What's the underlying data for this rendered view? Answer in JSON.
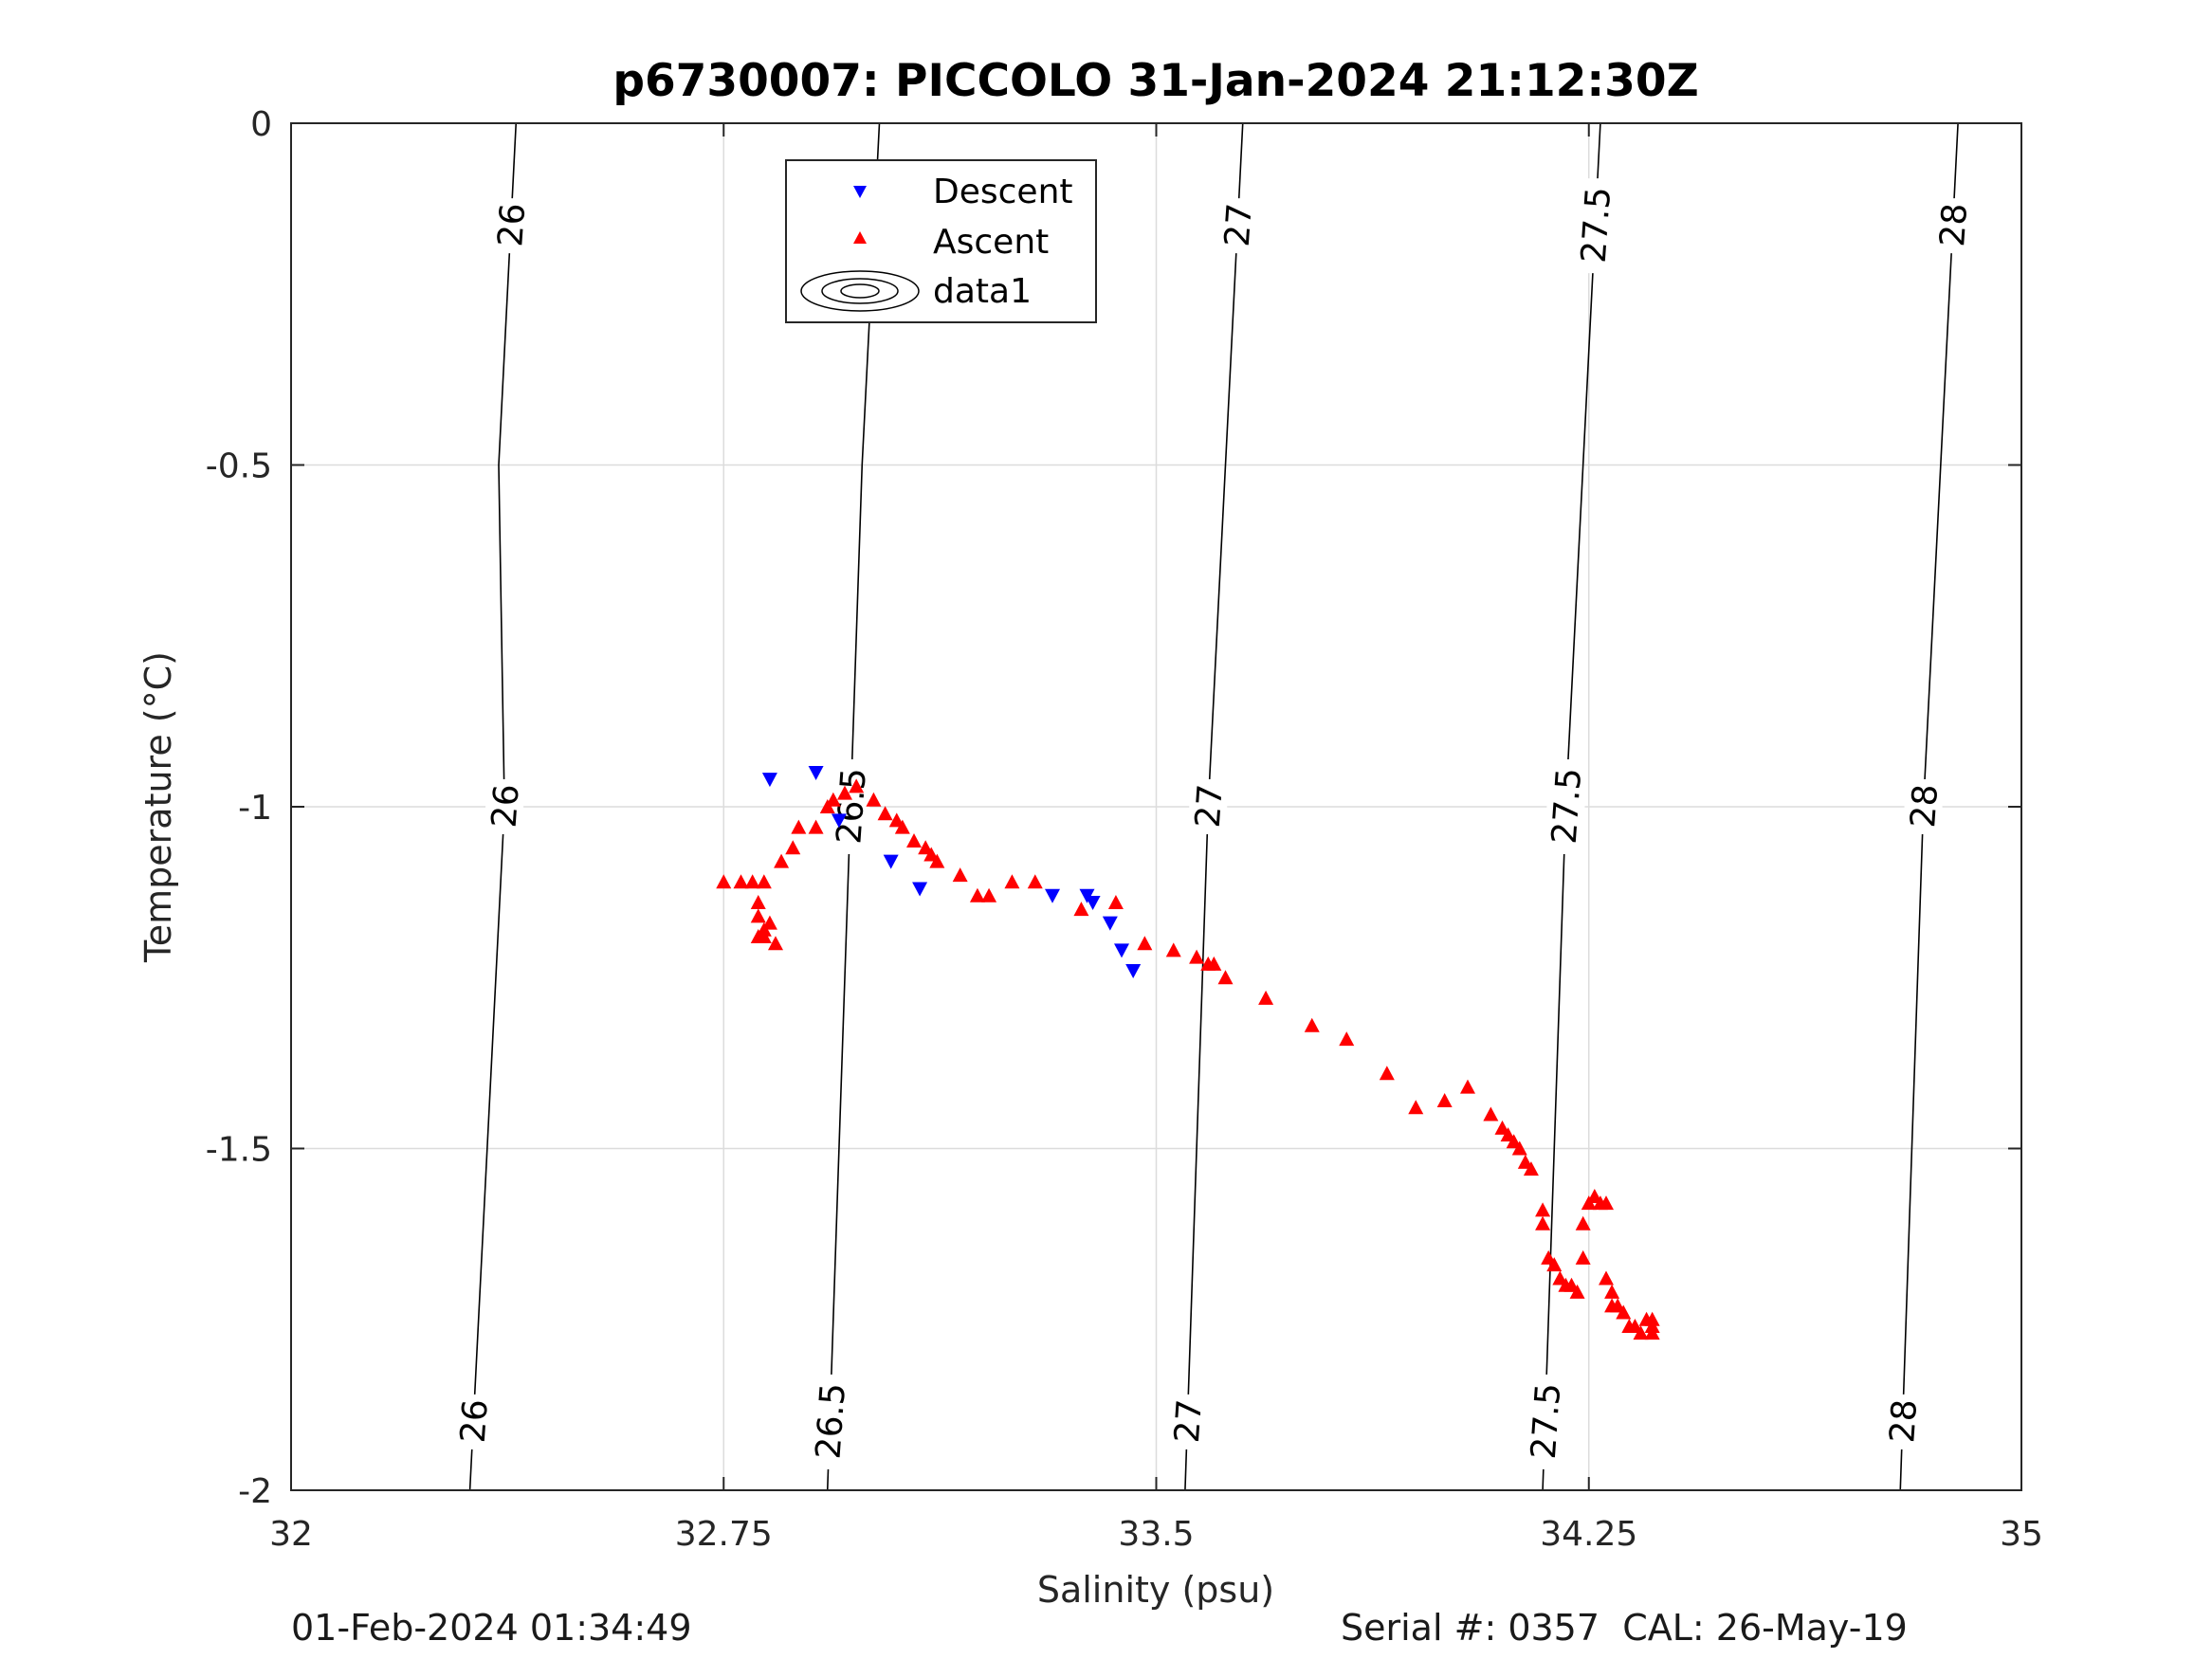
{
  "chart_data": {
    "type": "scatter",
    "title": "p6730007: PICCOLO 31-Jan-2024 21:12:30Z",
    "xlabel": "Salinity (psu)",
    "ylabel": "Temperature (°C)",
    "xlim": [
      32,
      35
    ],
    "ylim": [
      -2,
      0
    ],
    "xticks": [
      32,
      32.75,
      33.5,
      34.25,
      35
    ],
    "xtick_labels": [
      "32",
      "32.75",
      "33.5",
      "34.25",
      "35"
    ],
    "yticks": [
      -2,
      -1.5,
      -1,
      -0.5,
      0
    ],
    "ytick_labels": [
      "-2",
      "-1.5",
      "-1",
      "-0.5",
      "0"
    ],
    "grid": true,
    "legend_position": "top-center",
    "legend": [
      "Descent",
      "Ascent",
      "data1"
    ],
    "series": [
      {
        "name": "Descent",
        "marker": "triangle-down",
        "color": "#0000ff",
        "points": [
          [
            32.83,
            -0.96
          ],
          [
            32.91,
            -0.95
          ],
          [
            32.95,
            -1.02
          ],
          [
            33.04,
            -1.08
          ],
          [
            33.09,
            -1.12
          ],
          [
            33.32,
            -1.13
          ],
          [
            33.38,
            -1.13
          ],
          [
            33.39,
            -1.14
          ],
          [
            33.42,
            -1.17
          ],
          [
            33.44,
            -1.21
          ],
          [
            33.46,
            -1.24
          ]
        ]
      },
      {
        "name": "Ascent",
        "marker": "triangle-up",
        "color": "#ff0000",
        "points": [
          [
            32.75,
            -1.11
          ],
          [
            32.78,
            -1.11
          ],
          [
            32.8,
            -1.11
          ],
          [
            32.81,
            -1.14
          ],
          [
            32.82,
            -1.11
          ],
          [
            32.81,
            -1.16
          ],
          [
            32.82,
            -1.18
          ],
          [
            32.83,
            -1.17
          ],
          [
            32.82,
            -1.19
          ],
          [
            32.81,
            -1.19
          ],
          [
            32.84,
            -1.2
          ],
          [
            32.85,
            -1.08
          ],
          [
            32.87,
            -1.06
          ],
          [
            32.88,
            -1.03
          ],
          [
            32.91,
            -1.03
          ],
          [
            32.93,
            -1.0
          ],
          [
            32.94,
            -0.99
          ],
          [
            32.96,
            -0.98
          ],
          [
            32.98,
            -0.97
          ],
          [
            33.01,
            -0.99
          ],
          [
            33.03,
            -1.01
          ],
          [
            33.05,
            -1.02
          ],
          [
            33.06,
            -1.03
          ],
          [
            33.08,
            -1.05
          ],
          [
            33.1,
            -1.06
          ],
          [
            33.11,
            -1.07
          ],
          [
            33.12,
            -1.08
          ],
          [
            33.16,
            -1.1
          ],
          [
            33.19,
            -1.13
          ],
          [
            33.21,
            -1.13
          ],
          [
            33.25,
            -1.11
          ],
          [
            33.29,
            -1.11
          ],
          [
            33.37,
            -1.15
          ],
          [
            33.43,
            -1.14
          ],
          [
            33.48,
            -1.2
          ],
          [
            33.53,
            -1.21
          ],
          [
            33.57,
            -1.22
          ],
          [
            33.59,
            -1.23
          ],
          [
            33.6,
            -1.23
          ],
          [
            33.62,
            -1.25
          ],
          [
            33.69,
            -1.28
          ],
          [
            33.77,
            -1.32
          ],
          [
            33.83,
            -1.34
          ],
          [
            33.9,
            -1.39
          ],
          [
            33.95,
            -1.44
          ],
          [
            34.0,
            -1.43
          ],
          [
            34.04,
            -1.41
          ],
          [
            34.08,
            -1.45
          ],
          [
            34.1,
            -1.47
          ],
          [
            34.11,
            -1.48
          ],
          [
            34.12,
            -1.49
          ],
          [
            34.13,
            -1.5
          ],
          [
            34.14,
            -1.52
          ],
          [
            34.15,
            -1.53
          ],
          [
            34.17,
            -1.59
          ],
          [
            34.17,
            -1.61
          ],
          [
            34.18,
            -1.66
          ],
          [
            34.19,
            -1.67
          ],
          [
            34.2,
            -1.69
          ],
          [
            34.21,
            -1.7
          ],
          [
            34.22,
            -1.7
          ],
          [
            34.23,
            -1.71
          ],
          [
            34.24,
            -1.61
          ],
          [
            34.24,
            -1.66
          ],
          [
            34.25,
            -1.58
          ],
          [
            34.26,
            -1.57
          ],
          [
            34.27,
            -1.58
          ],
          [
            34.28,
            -1.58
          ],
          [
            34.28,
            -1.69
          ],
          [
            34.29,
            -1.71
          ],
          [
            34.29,
            -1.73
          ],
          [
            34.3,
            -1.73
          ],
          [
            34.31,
            -1.74
          ],
          [
            34.32,
            -1.76
          ],
          [
            34.33,
            -1.76
          ],
          [
            34.34,
            -1.77
          ],
          [
            34.35,
            -1.75
          ],
          [
            34.36,
            -1.76
          ],
          [
            34.36,
            -1.77
          ],
          [
            34.36,
            -1.75
          ]
        ]
      }
    ],
    "density_contours": {
      "name": "data1",
      "color": "#000000",
      "levels": [
        {
          "label": "26",
          "line": [
            [
              32.31,
              -2
            ],
            [
              32.34,
              -1.5
            ],
            [
              32.37,
              -1
            ],
            [
              32.36,
              -0.5
            ],
            [
              32.39,
              0
            ]
          ]
        },
        {
          "label": "26.5",
          "line": [
            [
              32.93,
              -2
            ],
            [
              32.95,
              -1.5
            ],
            [
              32.97,
              -1
            ],
            [
              32.99,
              -0.5
            ],
            [
              33.02,
              0
            ]
          ]
        },
        {
          "label": "27",
          "line": [
            [
              33.55,
              -2
            ],
            [
              33.57,
              -1.5
            ],
            [
              33.59,
              -1
            ],
            [
              33.62,
              -0.5
            ],
            [
              33.65,
              0
            ]
          ]
        },
        {
          "label": "27.5",
          "line": [
            [
              34.17,
              -2
            ],
            [
              34.19,
              -1.5
            ],
            [
              34.21,
              -1
            ],
            [
              34.24,
              -0.5
            ],
            [
              34.27,
              0
            ]
          ]
        },
        {
          "label": "28",
          "line": [
            [
              34.79,
              -2
            ],
            [
              34.81,
              -1.5
            ],
            [
              34.83,
              -1
            ],
            [
              34.86,
              -0.5
            ],
            [
              34.89,
              0
            ]
          ]
        }
      ]
    }
  },
  "footer": {
    "timestamp": "01-Feb-2024 01:34:49",
    "serial": "Serial #: 0357  CAL: 26-May-19"
  }
}
